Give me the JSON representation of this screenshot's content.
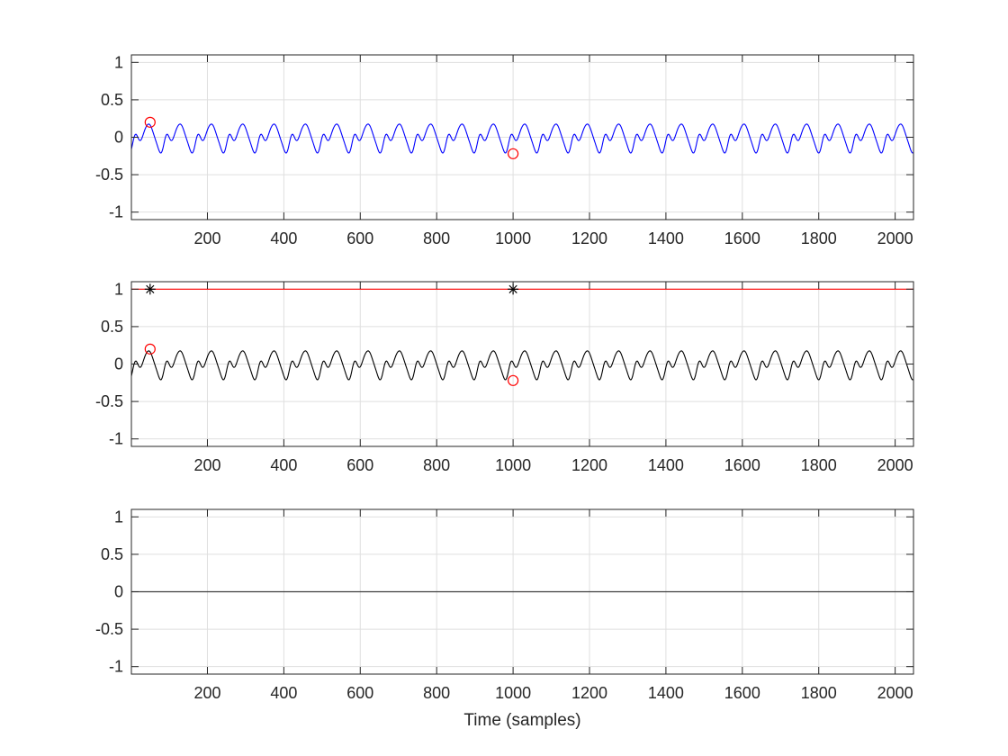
{
  "chart_data": [
    {
      "type": "line",
      "title": "",
      "xlabel": "",
      "ylabel": "",
      "xlim": [
        1,
        2048
      ],
      "ylim": [
        -1.1,
        1.1
      ],
      "xticks": [
        200,
        400,
        600,
        800,
        1000,
        1200,
        1400,
        1600,
        1800,
        2000
      ],
      "yticks": [
        1,
        0.5,
        0,
        -0.5,
        -1
      ],
      "xtick_labels": [
        "200",
        "400",
        "600",
        "800",
        "1000",
        "1200",
        "1400",
        "1600",
        "1800",
        "2000"
      ],
      "ytick_labels": [
        "1",
        "0.5",
        "0",
        "-0.5",
        "-1"
      ],
      "grid": true,
      "series": [
        {
          "kind": "signal",
          "color": "#0000ff",
          "samples": 2048,
          "approx_period": 82,
          "peak": 0.22,
          "trough": -0.22,
          "start_value": -0.22
        },
        {
          "kind": "markers",
          "marker": "circle",
          "color": "#ff0000",
          "points": [
            {
              "x": 50,
              "y": 0.2
            },
            {
              "x": 1000,
              "y": -0.22
            }
          ]
        }
      ]
    },
    {
      "type": "line",
      "title": "",
      "xlabel": "",
      "ylabel": "",
      "xlim": [
        1,
        2048
      ],
      "ylim": [
        -1.1,
        1.1
      ],
      "xticks": [
        200,
        400,
        600,
        800,
        1000,
        1200,
        1400,
        1600,
        1800,
        2000
      ],
      "yticks": [
        1,
        0.5,
        0,
        -0.5,
        -1
      ],
      "xtick_labels": [
        "200",
        "400",
        "600",
        "800",
        "1000",
        "1200",
        "1400",
        "1600",
        "1800",
        "2000"
      ],
      "ytick_labels": [
        "1",
        "0.5",
        "0",
        "-0.5",
        "-1"
      ],
      "grid": true,
      "series": [
        {
          "kind": "hline",
          "y": 1,
          "color": "#ff0000"
        },
        {
          "kind": "signal",
          "color": "#000000",
          "samples": 2048,
          "approx_period": 82,
          "peak": 0.22,
          "trough": -0.22,
          "start_value": -0.22
        },
        {
          "kind": "markers",
          "marker": "circle",
          "color": "#ff0000",
          "points": [
            {
              "x": 50,
              "y": 0.2
            },
            {
              "x": 1000,
              "y": -0.22
            }
          ]
        },
        {
          "kind": "markers",
          "marker": "asterisk",
          "color": "#000000",
          "points": [
            {
              "x": 50,
              "y": 1
            },
            {
              "x": 1000,
              "y": 1
            }
          ]
        }
      ]
    },
    {
      "type": "line",
      "title": "",
      "xlabel": "Time (samples)",
      "ylabel": "",
      "xlim": [
        1,
        2048
      ],
      "ylim": [
        -1.1,
        1.1
      ],
      "xticks": [
        200,
        400,
        600,
        800,
        1000,
        1200,
        1400,
        1600,
        1800,
        2000
      ],
      "yticks": [
        1,
        0.5,
        0,
        -0.5,
        -1
      ],
      "xtick_labels": [
        "200",
        "400",
        "600",
        "800",
        "1000",
        "1200",
        "1400",
        "1600",
        "1800",
        "2000"
      ],
      "ytick_labels": [
        "1",
        "0.5",
        "0",
        "-0.5",
        "-1"
      ],
      "grid": true,
      "series": [
        {
          "kind": "hline",
          "y": 0,
          "color": "#404040"
        }
      ]
    }
  ]
}
